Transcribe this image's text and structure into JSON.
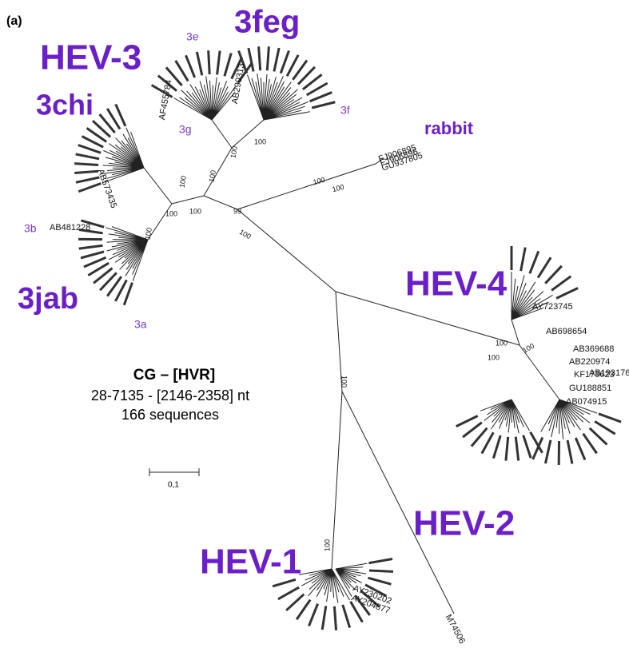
{
  "panel_label": "(a)",
  "clades": [
    "HEV-3",
    "3feg",
    "3chi",
    "3jab",
    "rabbit",
    "HEV-4",
    "HEV-1",
    "HEV-2"
  ],
  "subtypes": [
    "3e",
    "3f",
    "3g",
    "3b",
    "3a"
  ],
  "info": {
    "title": "CG – [HVR]",
    "range": "28-7135 - [2146-2358] nt",
    "count": "166 sequences"
  },
  "scale_label": "0,1",
  "leaves": [
    "FJ906895",
    "FJ906896",
    "GU937805",
    "AY723745",
    "AB698654",
    "AB369688",
    "AB220974",
    "KF173623",
    "GU188851",
    "AB074915",
    "AB193176",
    "AF455784",
    "AB290313",
    "AB481228",
    "M74506",
    "AY230202",
    "AY204877",
    "AB573435"
  ],
  "bootstrap": [
    "100",
    "99",
    "100",
    "100",
    "100",
    "100",
    "100",
    "100",
    "100",
    "100",
    "100",
    "100",
    "100",
    "100",
    "100",
    "100"
  ]
}
